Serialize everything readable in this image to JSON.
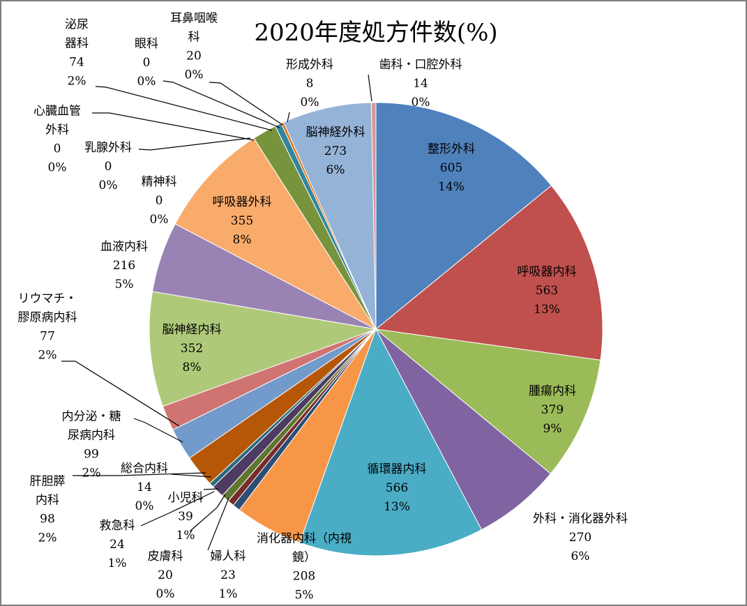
{
  "chart_data": {
    "type": "pie",
    "title": "2020年度処方件数(%)",
    "legend": "none",
    "slices": [
      {
        "name": "整形外科",
        "value": 605,
        "percent": "14%",
        "color": "#4f81bd"
      },
      {
        "name": "呼吸器内科",
        "value": 563,
        "percent": "13%",
        "color": "#c0504d"
      },
      {
        "name": "腫瘍内科",
        "value": 379,
        "percent": "9%",
        "color": "#9bbb59"
      },
      {
        "name": "外科・消化器外科",
        "value": 270,
        "percent": "6%",
        "color": "#8064a2"
      },
      {
        "name": "循環器内科",
        "value": 566,
        "percent": "13%",
        "color": "#4bacc6"
      },
      {
        "name": "消化器内科（内視鏡）",
        "value": 208,
        "percent": "5%",
        "color": "#f79646"
      },
      {
        "name": "婦人科",
        "value": 23,
        "percent": "1%",
        "color": "#2c4d75"
      },
      {
        "name": "皮膚科",
        "value": 20,
        "percent": "0%",
        "color": "#772c2a"
      },
      {
        "name": "救急科",
        "value": 24,
        "percent": "1%",
        "color": "#5f7530"
      },
      {
        "name": "小児科",
        "value": 39,
        "percent": "1%",
        "color": "#4d3b62"
      },
      {
        "name": "総合内科",
        "value": 14,
        "percent": "0%",
        "color": "#276a7c"
      },
      {
        "name": "肝胆膵内科",
        "value": 98,
        "percent": "2%",
        "color": "#b65708"
      },
      {
        "name": "内分泌・糖尿病内科",
        "value": 99,
        "percent": "2%",
        "color": "#729aca"
      },
      {
        "name": "リウマチ・膠原病内科",
        "value": 77,
        "percent": "2%",
        "color": "#d07473"
      },
      {
        "name": "脳神経内科",
        "value": 352,
        "percent": "8%",
        "color": "#afc97a"
      },
      {
        "name": "血液内科",
        "value": 216,
        "percent": "5%",
        "color": "#9983b5"
      },
      {
        "name": "呼吸器外科",
        "value": 355,
        "percent": "8%",
        "color": "#f9ab6b"
      },
      {
        "name": "精神科",
        "value": 0,
        "percent": "0%",
        "color": "#7f7f7f"
      },
      {
        "name": "乳腺外科",
        "value": 0,
        "percent": "0%",
        "color": "#7f7f7f"
      },
      {
        "name": "心臓血管外科",
        "value": 0,
        "percent": "0%",
        "color": "#7f7f7f"
      },
      {
        "name": "泌尿器科",
        "value": 74,
        "percent": "2%",
        "color": "#77933c"
      },
      {
        "name": "眼科",
        "value": 0,
        "percent": "0%",
        "color": "#7f7f7f"
      },
      {
        "name": "耳鼻咽喉科",
        "value": 20,
        "percent": "0%",
        "color": "#31859c"
      },
      {
        "name": "形成外科",
        "value": 8,
        "percent": "0%",
        "color": "#e46c0a"
      },
      {
        "name": "脳神経外科",
        "value": 273,
        "percent": "6%",
        "color": "#95b3d7"
      },
      {
        "name": "歯科・口腔外科",
        "value": 14,
        "percent": "0%",
        "color": "#d99694"
      }
    ]
  },
  "labels": [
    {
      "lines": [
        "整形外科",
        "605",
        "14%"
      ]
    },
    {
      "lines": [
        "呼吸器内科",
        "563",
        "13%"
      ]
    },
    {
      "lines": [
        "腫瘍内科",
        "379",
        "9%"
      ]
    },
    {
      "lines": [
        "外科・消化器外科",
        "270",
        "6%"
      ]
    },
    {
      "lines": [
        "循環器内科",
        "566",
        "13%"
      ]
    },
    {
      "lines": [
        "消化器内科（内視",
        "鏡）",
        "208",
        "5%"
      ]
    },
    {
      "lines": [
        "婦人科",
        "23",
        "1%"
      ]
    },
    {
      "lines": [
        "皮膚科",
        "20",
        "0%"
      ]
    },
    {
      "lines": [
        "救急科",
        "24",
        "1%"
      ]
    },
    {
      "lines": [
        "小児科",
        "39",
        "1%"
      ]
    },
    {
      "lines": [
        "総合内科",
        "14",
        "0%"
      ]
    },
    {
      "lines": [
        "肝胆膵",
        "内科",
        "98",
        "2%"
      ]
    },
    {
      "lines": [
        "内分泌・糖",
        "尿病内科",
        "99",
        "2%"
      ]
    },
    {
      "lines": [
        "リウマチ・",
        "膠原病内科",
        "77",
        "2%"
      ]
    },
    {
      "lines": [
        "脳神経内科",
        "352",
        "8%"
      ]
    },
    {
      "lines": [
        "血液内科",
        "216",
        "5%"
      ]
    },
    {
      "lines": [
        "呼吸器外科",
        "355",
        "8%"
      ]
    },
    {
      "lines": [
        "精神科",
        "0",
        "0%"
      ]
    },
    {
      "lines": [
        "乳腺外科",
        "0",
        "0%"
      ]
    },
    {
      "lines": [
        "心臓血管",
        "外科",
        "0",
        "0%"
      ]
    },
    {
      "lines": [
        "泌尿",
        "器科",
        "74",
        "2%"
      ]
    },
    {
      "lines": [
        "眼科",
        "0",
        "0%"
      ]
    },
    {
      "lines": [
        "耳鼻咽喉",
        "科",
        "20",
        "0%"
      ]
    },
    {
      "lines": [
        "形成外科",
        "8",
        "0%"
      ]
    },
    {
      "lines": [
        "脳神経外科",
        "273",
        "6%"
      ]
    },
    {
      "lines": [
        "歯科・口腔外科",
        "14",
        "0%"
      ]
    }
  ]
}
